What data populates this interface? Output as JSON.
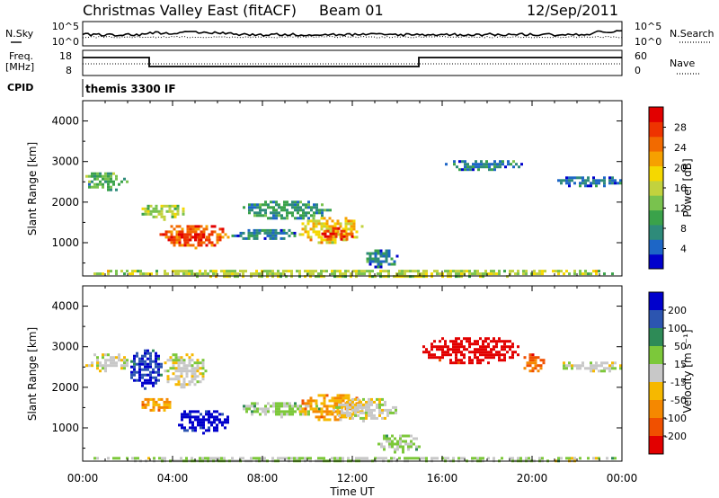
{
  "header": {
    "title": "Christmas Valley East (fitACF)",
    "beam": "Beam 01",
    "date": "12/Sep/2011"
  },
  "nsky_panel": {
    "left_label": "N.Sky",
    "right_label": "N.Search",
    "left_ticks": [
      "10^5",
      "10^0"
    ],
    "right_ticks": [
      "10^5",
      "10^0"
    ]
  },
  "freq_panel": {
    "left_label_1": "Freq.",
    "left_label_2": "[MHz]",
    "right_label": "Nave",
    "left_ticks": [
      "18",
      "8"
    ],
    "right_ticks": [
      "60",
      "0"
    ]
  },
  "cpid": {
    "label": "CPID",
    "value": "themis 3300 IF"
  },
  "power_colorbar": {
    "title": "Power [dB]",
    "ticks": [
      "28",
      "24",
      "20",
      "16",
      "12",
      "8",
      "4"
    ],
    "colors": [
      "#0000cc",
      "#1d66c6",
      "#2e8b7a",
      "#3aa24a",
      "#79c24e",
      "#c2d23e",
      "#f5d800",
      "#f6a000",
      "#f26a00",
      "#ee3300",
      "#e20000"
    ]
  },
  "velocity_colorbar": {
    "title": "Velocity [m s⁻¹]",
    "ticks": [
      "200",
      "100",
      "50",
      "15",
      "-15",
      "-50",
      "-100",
      "-200"
    ],
    "colors": [
      "#0000cc",
      "#2c55b0",
      "#2e8b57",
      "#7cc83a",
      "#c8c8c8",
      "#f6b800",
      "#f58800",
      "#f05000",
      "#e20000"
    ]
  },
  "xaxis": {
    "label": "Time UT",
    "ticks": [
      "00:00",
      "04:00",
      "08:00",
      "12:00",
      "16:00",
      "20:00",
      "00:00"
    ]
  },
  "chart_data": [
    {
      "type": "heatmap",
      "title": "Power",
      "ylabel": "Slant Range [km]",
      "xlabel": "Time UT",
      "xlim_hours": [
        0,
        24
      ],
      "ylim_km": [
        180,
        4500
      ],
      "yticks": [
        1000,
        2000,
        3000,
        4000
      ],
      "colorbar_range": [
        0,
        30
      ],
      "regions": [
        {
          "t0": 3.3,
          "t1": 6.5,
          "r0": 900,
          "r1": 1500,
          "value": 24
        },
        {
          "t0": 4.0,
          "t1": 5.7,
          "r0": 1050,
          "r1": 1300,
          "value": 28
        },
        {
          "t0": 2.5,
          "t1": 4.5,
          "r0": 1600,
          "r1": 2000,
          "value": 14
        },
        {
          "t0": 0.0,
          "t1": 2.0,
          "r0": 2300,
          "r1": 2800,
          "value": 10
        },
        {
          "t0": 6.5,
          "t1": 9.5,
          "r0": 1100,
          "r1": 1400,
          "value": 6
        },
        {
          "t0": 7.0,
          "t1": 11.0,
          "r0": 1600,
          "r1": 2100,
          "value": 8
        },
        {
          "t0": 9.5,
          "t1": 12.5,
          "r0": 1000,
          "r1": 1700,
          "value": 18
        },
        {
          "t0": 10.5,
          "t1": 12.0,
          "r0": 1050,
          "r1": 1450,
          "value": 26
        },
        {
          "t0": 12.5,
          "t1": 14.0,
          "r0": 400,
          "r1": 900,
          "value": 6
        },
        {
          "t0": 16.0,
          "t1": 19.5,
          "r0": 2800,
          "r1": 3100,
          "value": 6
        },
        {
          "t0": 21.0,
          "t1": 24.0,
          "r0": 2400,
          "r1": 2700,
          "value": 5
        },
        {
          "t0": 0.0,
          "t1": 24.0,
          "r0": 180,
          "r1": 400,
          "value": 14
        }
      ]
    },
    {
      "type": "heatmap",
      "title": "Velocity",
      "ylabel": "Slant Range [km]",
      "xlabel": "Time UT",
      "xlim_hours": [
        0,
        24
      ],
      "ylim_km": [
        180,
        4500
      ],
      "yticks": [
        1000,
        2000,
        3000,
        4000
      ],
      "colorbar_range": [
        -200,
        200
      ],
      "regions": [
        {
          "t0": 0.0,
          "t1": 2.0,
          "r0": 2400,
          "r1": 2900,
          "value": 0
        },
        {
          "t0": 2.0,
          "t1": 3.5,
          "r0": 2000,
          "r1": 3000,
          "value": 150
        },
        {
          "t0": 3.5,
          "t1": 5.5,
          "r0": 2000,
          "r1": 2900,
          "value": 0
        },
        {
          "t0": 2.5,
          "t1": 4.0,
          "r0": 1400,
          "r1": 1800,
          "value": -80
        },
        {
          "t0": 4.0,
          "t1": 6.5,
          "r0": 900,
          "r1": 1500,
          "value": 180
        },
        {
          "t0": 7.0,
          "t1": 10.5,
          "r0": 1300,
          "r1": 1700,
          "value": 30
        },
        {
          "t0": 9.5,
          "t1": 12.5,
          "r0": 1200,
          "r1": 1900,
          "value": -70
        },
        {
          "t0": 11.0,
          "t1": 14.0,
          "r0": 1200,
          "r1": 1800,
          "value": 0
        },
        {
          "t0": 13.0,
          "t1": 15.0,
          "r0": 400,
          "r1": 900,
          "value": 30
        },
        {
          "t0": 15.0,
          "t1": 19.5,
          "r0": 2600,
          "r1": 3300,
          "value": -200
        },
        {
          "t0": 19.5,
          "t1": 20.5,
          "r0": 2400,
          "r1": 2900,
          "value": -120
        },
        {
          "t0": 21.0,
          "t1": 24.0,
          "r0": 2400,
          "r1": 2700,
          "value": 0
        },
        {
          "t0": 0.0,
          "t1": 24.0,
          "r0": 180,
          "r1": 350,
          "value": 20
        }
      ]
    }
  ]
}
